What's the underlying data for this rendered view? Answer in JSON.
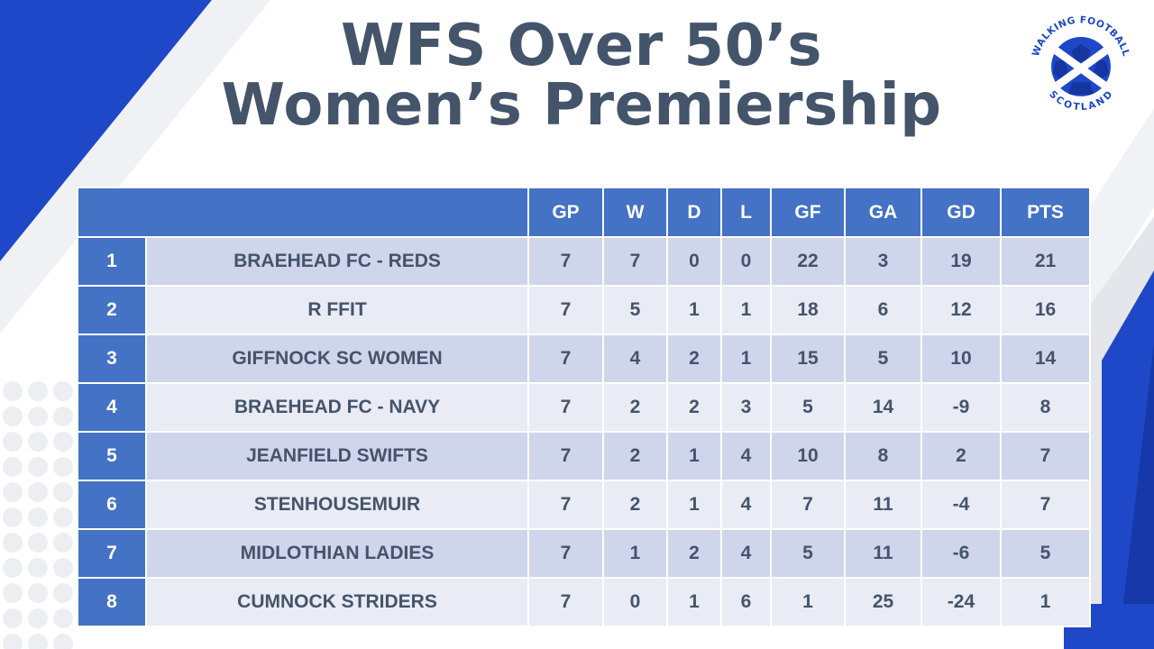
{
  "title": {
    "line1": "WFS Over 50’s",
    "line2": "Women’s Premiership"
  },
  "logo": {
    "top_text": "WALKING FOOTBALL",
    "bottom_text": "SCOTLAND",
    "icon": "football-saltire-logo"
  },
  "colors": {
    "header": "#4472c4",
    "row_band_dark": "#cfd5ea",
    "row_band_light": "#e9ebf5",
    "title": "#44546a",
    "accent_blue": "#1e48c7"
  },
  "table": {
    "columns": [
      "",
      "",
      "GP",
      "W",
      "D",
      "L",
      "GF",
      "GA",
      "GD",
      "PTS"
    ],
    "rows": [
      {
        "pos": "1",
        "team": "BRAEHEAD FC - REDS",
        "gp": "7",
        "w": "7",
        "d": "0",
        "l": "0",
        "gf": "22",
        "ga": "3",
        "gd": "19",
        "pts": "21"
      },
      {
        "pos": "2",
        "team": "R FFIT",
        "gp": "7",
        "w": "5",
        "d": "1",
        "l": "1",
        "gf": "18",
        "ga": "6",
        "gd": "12",
        "pts": "16"
      },
      {
        "pos": "3",
        "team": "GIFFNOCK SC WOMEN",
        "gp": "7",
        "w": "4",
        "d": "2",
        "l": "1",
        "gf": "15",
        "ga": "5",
        "gd": "10",
        "pts": "14"
      },
      {
        "pos": "4",
        "team": "BRAEHEAD FC - NAVY",
        "gp": "7",
        "w": "2",
        "d": "2",
        "l": "3",
        "gf": "5",
        "ga": "14",
        "gd": "-9",
        "pts": "8"
      },
      {
        "pos": "5",
        "team": "JEANFIELD SWIFTS",
        "gp": "7",
        "w": "2",
        "d": "1",
        "l": "4",
        "gf": "10",
        "ga": "8",
        "gd": "2",
        "pts": "7"
      },
      {
        "pos": "6",
        "team": "STENHOUSEMUIR",
        "gp": "7",
        "w": "2",
        "d": "1",
        "l": "4",
        "gf": "7",
        "ga": "11",
        "gd": "-4",
        "pts": "7"
      },
      {
        "pos": "7",
        "team": "MIDLOTHIAN LADIES",
        "gp": "7",
        "w": "1",
        "d": "2",
        "l": "4",
        "gf": "5",
        "ga": "11",
        "gd": "-6",
        "pts": "5"
      },
      {
        "pos": "8",
        "team": "CUMNOCK STRIDERS",
        "gp": "7",
        "w": "0",
        "d": "1",
        "l": "6",
        "gf": "1",
        "ga": "25",
        "gd": "-24",
        "pts": "1"
      }
    ]
  }
}
